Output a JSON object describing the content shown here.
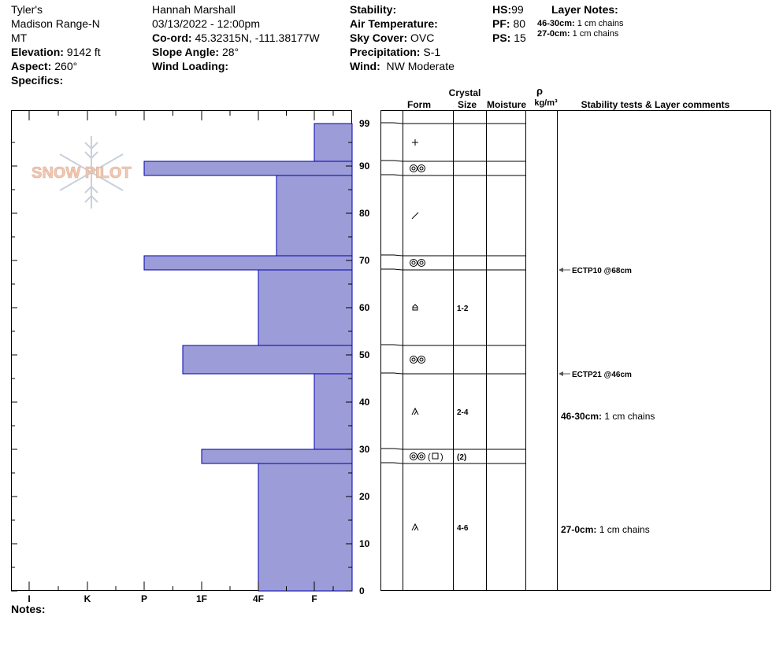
{
  "header": {
    "col1": [
      "Tyler's",
      "Madison Range-N",
      "MT"
    ],
    "elevation_label": "Elevation:",
    "elevation_value": "9142 ft",
    "aspect_label": "Aspect:",
    "aspect_value": "260°",
    "specifics_label": "Specifics:",
    "observer": "Hannah Marshall",
    "datetime": "03/13/2022 - 12:00pm",
    "coord_label": "Co-ord:",
    "coord_value": "45.32315N, -111.38177W",
    "slope_label": "Slope Angle:",
    "slope_value": "28°",
    "wind_loading_label": "Wind Loading:",
    "stability_label": "Stability:",
    "air_temp_label": "Air Temperature:",
    "sky_label": "Sky Cover:",
    "sky_value": "OVC",
    "precip_label": "Precipitation:",
    "precip_value": "S-1",
    "wind_label": "Wind:",
    "wind_value": "NW Moderate",
    "hs_label": "HS:",
    "hs_value": "99",
    "pf_label": "PF:",
    "pf_value": "80",
    "ps_label": "PS:",
    "ps_value": "15",
    "layer_notes_title": "Layer Notes:",
    "layer_notes": [
      {
        "label": "46-30cm:",
        "text": "1 cm chains"
      },
      {
        "label": "27-0cm:",
        "text": "1 cm chains"
      }
    ]
  },
  "logo_text": "SNOW PILOT",
  "notes_label": "Notes:",
  "table_headers": {
    "crystal": "Crystal",
    "form": "Form",
    "size": "Size",
    "moisture": "Moisture",
    "rho": "ρ",
    "density_unit": "kg/m³",
    "comments": "Stability tests & Layer comments"
  },
  "colors": {
    "bar_fill": "#9c9cd9",
    "bar_stroke": "#0000aa",
    "logo": "#c8d0dc",
    "logo_text": "#f2c9b4"
  },
  "chart_data": {
    "type": "bar",
    "orientation": "horizontal",
    "hardness_scale": [
      "I",
      "K",
      "P",
      "1F",
      "4F",
      "F"
    ],
    "hardness_scale_note": "rendered in the order printed on the x-axis, left to right",
    "y_label": "",
    "y_range": [
      0,
      99
    ],
    "y_ticks": [
      0,
      10,
      20,
      30,
      40,
      50,
      60,
      70,
      80,
      90,
      99
    ],
    "x_tick_labels": [
      "I",
      "K",
      "P",
      "1F",
      "4F",
      "F"
    ],
    "layers": [
      {
        "top": 99,
        "bottom": 91,
        "hardness": "F",
        "form": "plus",
        "size": ""
      },
      {
        "top": 91,
        "bottom": 88,
        "hardness": "P",
        "form": "double-ring",
        "size": ""
      },
      {
        "top": 88,
        "bottom": 71,
        "hardness": "F-4F",
        "form": "slash",
        "size": ""
      },
      {
        "top": 71,
        "bottom": 68,
        "hardness": "P",
        "form": "double-ring",
        "size": ""
      },
      {
        "top": 68,
        "bottom": 52,
        "hardness": "4F",
        "form": "faceted",
        "size": "1-2"
      },
      {
        "top": 52,
        "bottom": 46,
        "hardness": "1F+",
        "form": "double-ring",
        "size": ""
      },
      {
        "top": 46,
        "bottom": 30,
        "hardness": "F",
        "form": "depth-hoar",
        "size": "2-4"
      },
      {
        "top": 30,
        "bottom": 27,
        "hardness": "1F",
        "form": "double-ring-square",
        "size": "(2)"
      },
      {
        "top": 27,
        "bottom": 0,
        "hardness": "4F",
        "form": "depth-hoar",
        "size": "4-6"
      }
    ],
    "stability_tests": [
      {
        "depth": 68,
        "label": "ECTP10 @68cm"
      },
      {
        "depth": 46,
        "label": "ECTP21 @46cm"
      }
    ],
    "layer_comments": [
      {
        "depth": 37,
        "label": "46-30cm:",
        "text": "1 cm chains"
      },
      {
        "depth": 13,
        "label": "27-0cm:",
        "text": "1 cm chains"
      }
    ]
  }
}
